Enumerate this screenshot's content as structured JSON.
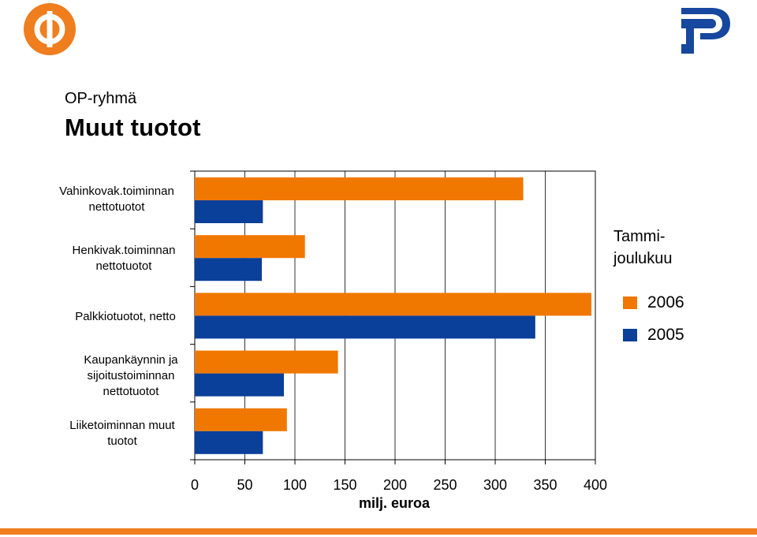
{
  "header": {
    "subtitle": "OP-ryhmä",
    "title": "Muut tuotot"
  },
  "logos": {
    "left": "op-logo",
    "right": "pohjola-logo"
  },
  "colors": {
    "series_2006": "#f07800",
    "series_2005": "#0a3f9a",
    "logo_orange": "#f07d1e",
    "logo_blue": "#17479e",
    "footer": "#f07d1e"
  },
  "chart_data": {
    "type": "bar",
    "orientation": "horizontal",
    "categories": [
      "Vahinkovak.toiminnan\nnettotuotot",
      "Henkivak.toiminnan\nnettotuotot",
      "Palkkiotuotot, netto",
      "Kaupankäynnin ja\nsijoitustoiminnan\nnettotuotot",
      "Liiketoiminnan muut\ntuotot"
    ],
    "series": [
      {
        "name": "2006",
        "values": [
          328,
          110,
          396,
          143,
          92
        ]
      },
      {
        "name": "2005",
        "values": [
          68,
          67,
          340,
          89,
          68
        ]
      }
    ],
    "xlabel": "milj. euroa",
    "xlim": [
      0,
      400
    ],
    "xticks": [
      0,
      50,
      100,
      150,
      200,
      250,
      300,
      350,
      400
    ],
    "grid": true,
    "legend": {
      "title": "Tammi-\njoulukuu",
      "position": "right"
    }
  }
}
